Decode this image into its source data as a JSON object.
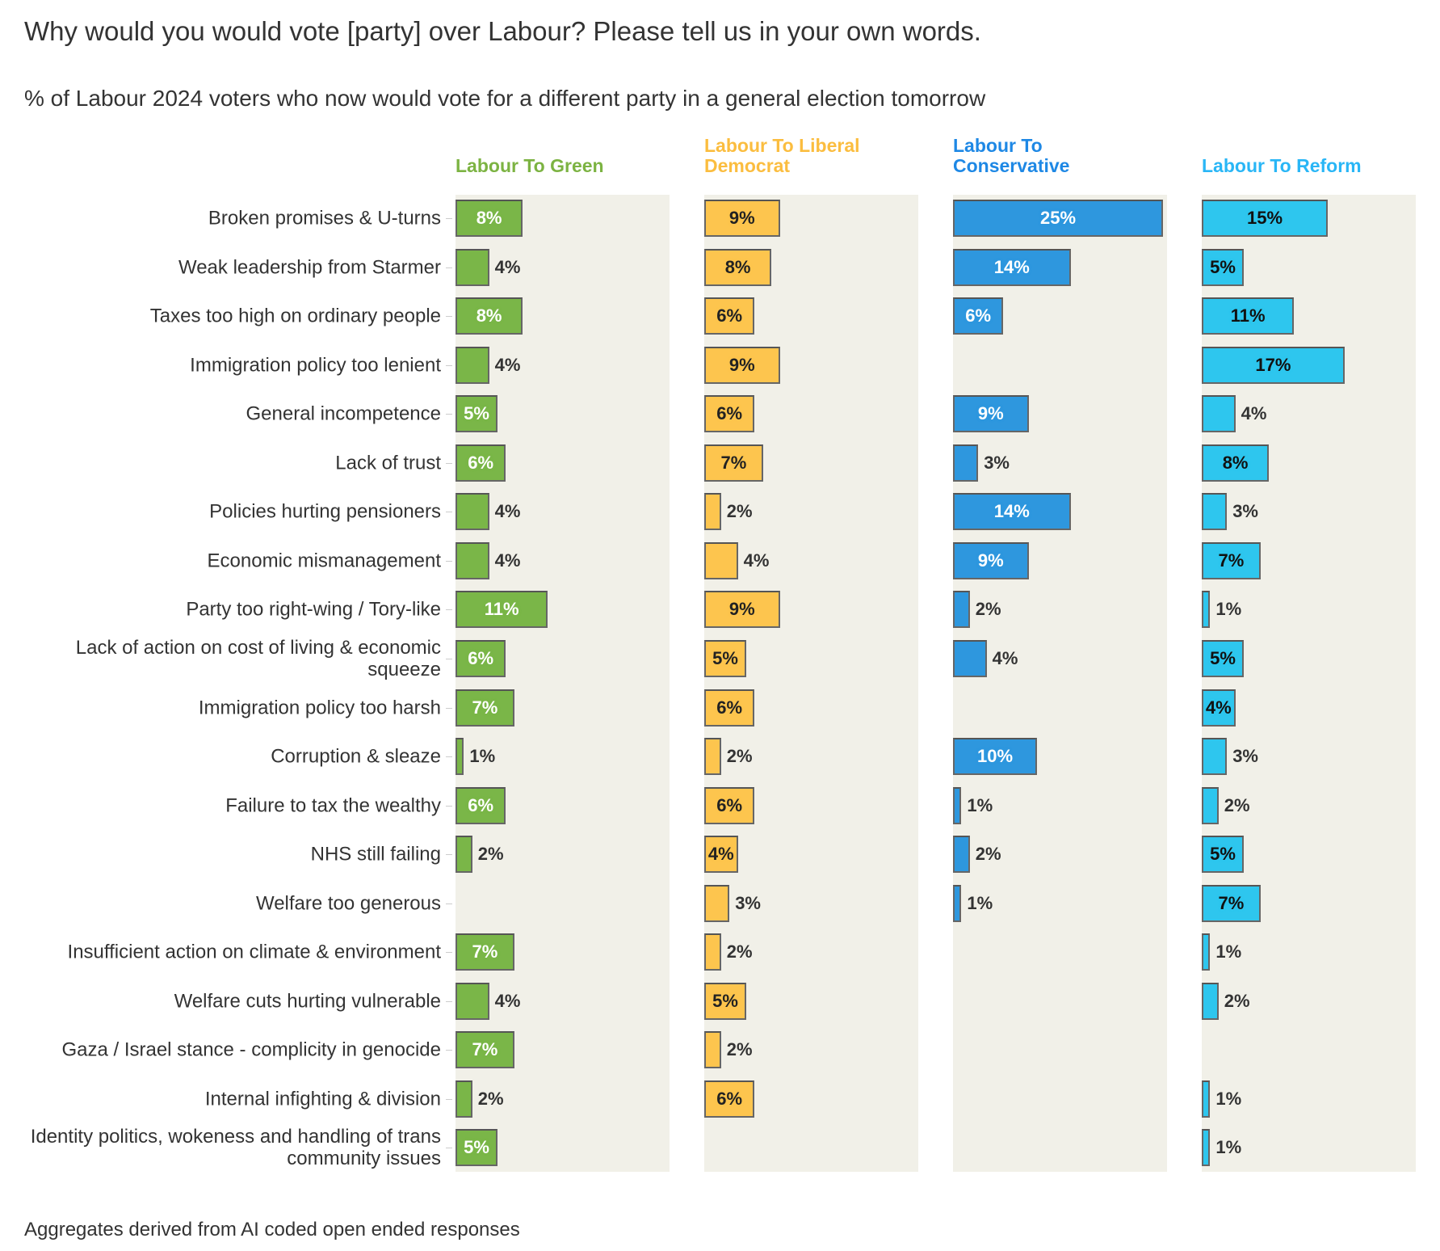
{
  "title": "Why would you would vote [party] over Labour? Please tell us in your own words.",
  "subtitle": "% of Labour 2024 voters who now would vote for a different party in a general election tomorrow",
  "footer": "Aggregates derived from AI coded open ended responses",
  "chart_data": {
    "type": "bar",
    "orientation": "horizontal",
    "unit": "%",
    "categories": [
      "Broken promises & U-turns",
      "Weak leadership from Starmer",
      "Taxes too high on ordinary people",
      "Immigration policy too lenient",
      "General incompetence",
      "Lack of trust",
      "Policies hurting pensioners",
      "Economic mismanagement",
      "Party too right-wing / Tory-like",
      "Lack of action on cost of living & economic squeeze",
      "Immigration policy too harsh",
      "Corruption & sleaze",
      "Failure to tax the wealthy",
      "NHS still failing",
      "Welfare too generous",
      "Insufficient action on climate & environment",
      "Welfare cuts hurting vulnerable",
      "Gaza / Israel stance - complicity in genocide",
      "Internal infighting & division",
      "Identity politics, wokeness and handling of trans community issues"
    ],
    "series": [
      {
        "name": "Labour To Green",
        "color": "#7ab648",
        "header_color": "#7cb342",
        "label_color": "#ffffff",
        "values": [
          8,
          4,
          8,
          4,
          5,
          6,
          4,
          4,
          11,
          6,
          7,
          1,
          6,
          2,
          null,
          7,
          4,
          7,
          2,
          5
        ],
        "label_inside": [
          true,
          false,
          true,
          false,
          true,
          true,
          false,
          false,
          true,
          true,
          true,
          false,
          true,
          false,
          null,
          true,
          false,
          true,
          false,
          true
        ]
      },
      {
        "name": "Labour To Liberal Democrat",
        "color": "#fdc54e",
        "header_color": "#fbbd3f",
        "label_color": "#222222",
        "values": [
          9,
          8,
          6,
          9,
          6,
          7,
          2,
          4,
          9,
          5,
          6,
          2,
          6,
          4,
          3,
          2,
          5,
          2,
          6,
          null
        ],
        "label_inside": [
          true,
          true,
          true,
          true,
          true,
          true,
          false,
          false,
          true,
          true,
          true,
          false,
          true,
          true,
          false,
          false,
          true,
          false,
          true,
          null
        ]
      },
      {
        "name": "Labour To Conservative",
        "color": "#2e97de",
        "header_color": "#1e88e5",
        "label_color": "#ffffff",
        "values": [
          25,
          14,
          6,
          null,
          9,
          3,
          14,
          9,
          2,
          4,
          null,
          10,
          1,
          2,
          1,
          null,
          null,
          null,
          null,
          null
        ],
        "label_inside": [
          true,
          true,
          true,
          null,
          true,
          false,
          true,
          true,
          false,
          false,
          null,
          true,
          false,
          false,
          false,
          null,
          null,
          null,
          null,
          null
        ]
      },
      {
        "name": "Labour To Reform",
        "color": "#2ec6ee",
        "header_color": "#29b6f6",
        "label_color": "#111111",
        "values": [
          15,
          5,
          11,
          17,
          4,
          8,
          3,
          7,
          1,
          5,
          4,
          3,
          2,
          5,
          7,
          1,
          2,
          null,
          1,
          1
        ],
        "label_inside": [
          true,
          true,
          true,
          true,
          false,
          true,
          false,
          true,
          false,
          true,
          true,
          false,
          false,
          true,
          true,
          false,
          false,
          null,
          false,
          false
        ]
      }
    ],
    "xlim": [
      0,
      25
    ]
  }
}
